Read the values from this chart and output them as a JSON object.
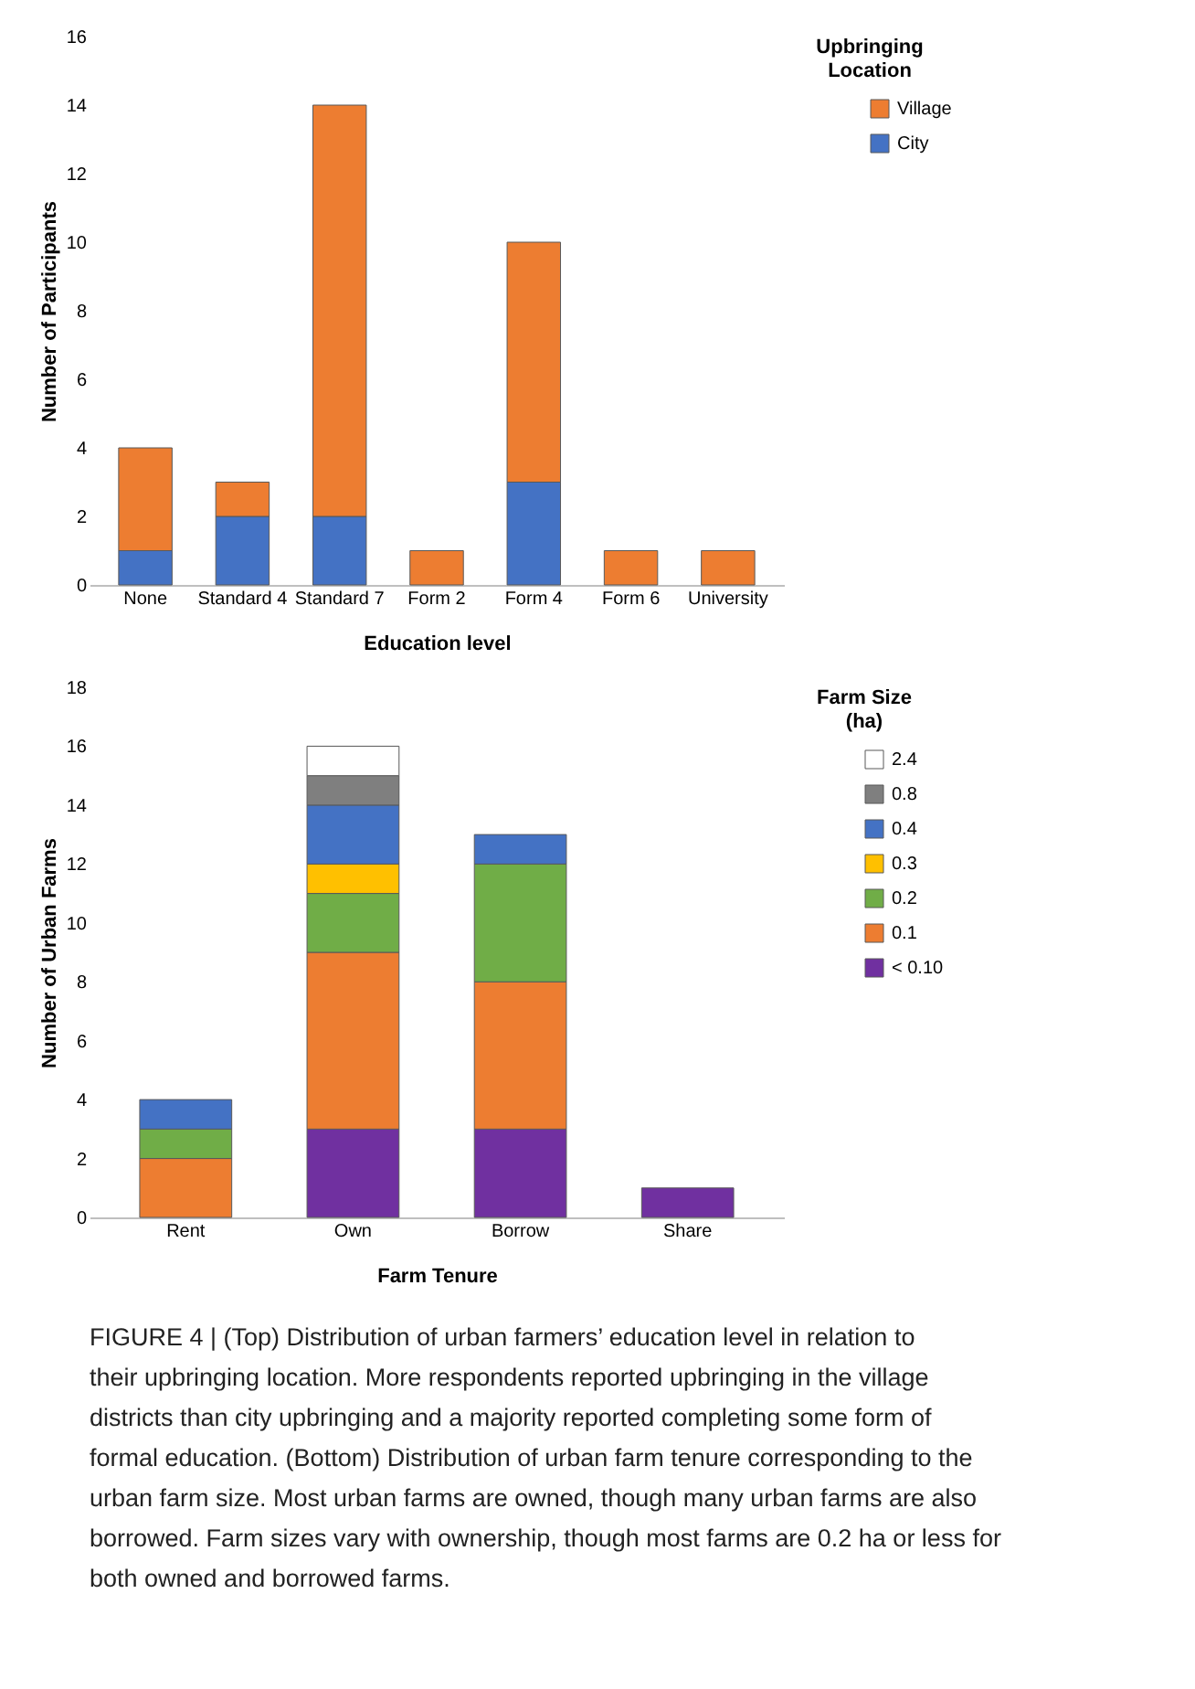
{
  "chart_data": [
    {
      "type": "bar",
      "stacked": true,
      "xlabel": "Education level",
      "ylabel": "Number of Participants",
      "legend_title": "Upbringing Location",
      "legend": "right",
      "grid": false,
      "categories": [
        "None",
        "Standard 4",
        "Standard 7",
        "Form 2",
        "Form 4",
        "Form 6",
        "University"
      ],
      "ylim": [
        0,
        16
      ],
      "yticks": [
        0,
        2,
        4,
        6,
        8,
        10,
        12,
        14,
        16
      ],
      "series": [
        {
          "name": "City",
          "color": "#4472c4",
          "values": [
            1,
            2,
            2,
            0,
            3,
            0,
            0
          ]
        },
        {
          "name": "Village",
          "color": "#ed7d31",
          "values": [
            3,
            1,
            12,
            1,
            7,
            1,
            1
          ]
        }
      ]
    },
    {
      "type": "bar",
      "stacked": true,
      "xlabel": "Farm Tenure",
      "ylabel": "Number of Urban Farms",
      "legend_title": "Farm Size (ha)",
      "legend": "right",
      "grid": false,
      "categories": [
        "Rent",
        "Own",
        "Borrow",
        "Share"
      ],
      "ylim": [
        0,
        18
      ],
      "yticks": [
        0,
        2,
        4,
        6,
        8,
        10,
        12,
        14,
        16,
        18
      ],
      "series": [
        {
          "name": "< 0.10",
          "color": "#7030a0",
          "values": [
            0,
            3,
            3,
            1
          ]
        },
        {
          "name": "0.1",
          "color": "#ed7d31",
          "values": [
            2,
            6,
            5,
            0
          ]
        },
        {
          "name": "0.2",
          "color": "#70ad47",
          "values": [
            1,
            2,
            4,
            0
          ]
        },
        {
          "name": "0.3",
          "color": "#ffc000",
          "values": [
            0,
            1,
            0,
            0
          ]
        },
        {
          "name": "0.4",
          "color": "#4472c4",
          "values": [
            1,
            2,
            1,
            0
          ]
        },
        {
          "name": "0.8",
          "color": "#7f7f7f",
          "values": [
            0,
            1,
            0,
            0
          ]
        },
        {
          "name": "2.4",
          "color": "#ffffff",
          "values": [
            0,
            1,
            0,
            0
          ]
        }
      ],
      "annotations": [
        "FIGURE 4 | (Top) Distribution of urban farmers’ education level in relation to their upbringing location. More respondents reported upbringing in the village districts than city upbringing and a majority reported completing some form of formal education. (Bottom) Distribution of urban farm tenure corresponding to the urban farm size. Most urban farms are owned, though many urban farms are also borrowed. Farm sizes vary with ownership, though most farms are 0.2 ha or less for both owned and borrowed farms."
      ]
    }
  ]
}
